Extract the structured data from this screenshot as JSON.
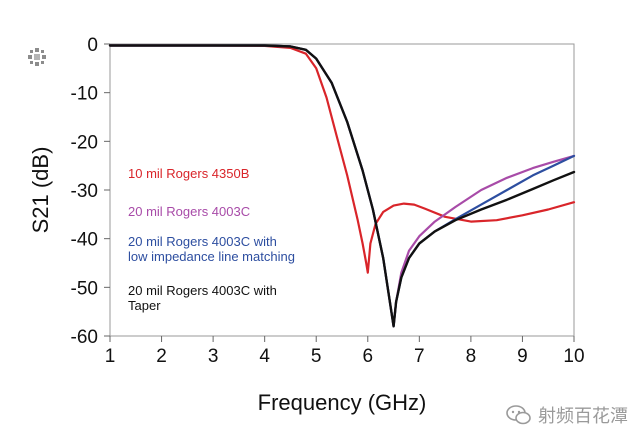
{
  "chart_data": {
    "type": "line",
    "title": "",
    "xlabel": "Frequency (GHz)",
    "ylabel": "S21 (dB)",
    "xlim": [
      1,
      10
    ],
    "ylim": [
      -60,
      0
    ],
    "xticks": [
      1,
      2,
      3,
      4,
      5,
      6,
      7,
      8,
      9,
      10
    ],
    "yticks": [
      0,
      -10,
      -20,
      -30,
      -40,
      -50,
      -60
    ],
    "grid": false,
    "series": [
      {
        "name": "10 mil Rogers 4350B",
        "color": "#d9252a",
        "x": [
          1,
          3,
          4,
          4.5,
          4.8,
          5,
          5.2,
          5.4,
          5.6,
          5.8,
          5.9,
          5.97,
          6.0,
          6.05,
          6.15,
          6.3,
          6.5,
          6.7,
          6.9,
          7.1,
          7.5,
          8.0,
          8.5,
          9.0,
          9.5,
          10
        ],
        "y": [
          -0.3,
          -0.3,
          -0.4,
          -0.8,
          -2,
          -5,
          -11,
          -19,
          -27,
          -36,
          -41,
          -45,
          -47,
          -41,
          -37,
          -34.5,
          -33.2,
          -32.8,
          -33,
          -33.8,
          -35.5,
          -36.5,
          -36.2,
          -35.2,
          -34,
          -32.5
        ]
      },
      {
        "name": "20 mil Rogers 4003C",
        "color": "#a84ba8",
        "x": [
          1,
          3,
          4,
          4.5,
          4.8,
          5,
          5.3,
          5.6,
          5.9,
          6.1,
          6.3,
          6.4,
          6.5,
          6.55,
          6.65,
          6.8,
          7.0,
          7.3,
          7.7,
          8.2,
          8.7,
          9.2,
          9.6,
          10
        ],
        "y": [
          -0.3,
          -0.3,
          -0.3,
          -0.5,
          -1.2,
          -3,
          -8,
          -16,
          -26,
          -34,
          -44,
          -51,
          -58,
          -53,
          -47,
          -42.5,
          -39.5,
          -36.5,
          -33.5,
          -30,
          -27.5,
          -25.5,
          -24.2,
          -23
        ]
      },
      {
        "name": "20 mil Rogers 4003C with low impedance line matching",
        "color": "#2d4ea0",
        "x": [
          1,
          3,
          4,
          4.5,
          4.8,
          5,
          5.3,
          5.6,
          5.9,
          6.1,
          6.3,
          6.4,
          6.5,
          6.55,
          6.65,
          6.8,
          7.0,
          7.3,
          7.7,
          8.2,
          8.7,
          9.2,
          9.6,
          10
        ],
        "y": [
          -0.3,
          -0.3,
          -0.3,
          -0.5,
          -1.2,
          -3,
          -8,
          -16,
          -26,
          -34,
          -44,
          -51,
          -58,
          -53,
          -48,
          -44,
          -41,
          -38.5,
          -36,
          -33,
          -30,
          -27,
          -25,
          -23
        ]
      },
      {
        "name": "20 mil Rogers 4003C with Taper",
        "color": "#111111",
        "x": [
          1,
          3,
          4,
          4.5,
          4.8,
          5,
          5.3,
          5.6,
          5.9,
          6.1,
          6.3,
          6.4,
          6.5,
          6.55,
          6.65,
          6.8,
          7.0,
          7.3,
          7.7,
          8.2,
          8.7,
          9.2,
          9.6,
          10
        ],
        "y": [
          -0.3,
          -0.3,
          -0.3,
          -0.5,
          -1.2,
          -3,
          -8,
          -16,
          -26,
          -34,
          -44,
          -51,
          -58,
          -53,
          -48,
          -44,
          -41,
          -38.5,
          -36.2,
          -34,
          -32,
          -29.8,
          -28,
          -26.3
        ]
      }
    ]
  },
  "legend_lines": [
    [
      "10 mil Rogers 4350B"
    ],
    [
      "20 mil Rogers 4003C"
    ],
    [
      "20 mil Rogers 4003C with",
      "low impedance line matching"
    ],
    [
      "20 mil Rogers 4003C with",
      "Taper"
    ]
  ],
  "watermark": "射频百花潭"
}
